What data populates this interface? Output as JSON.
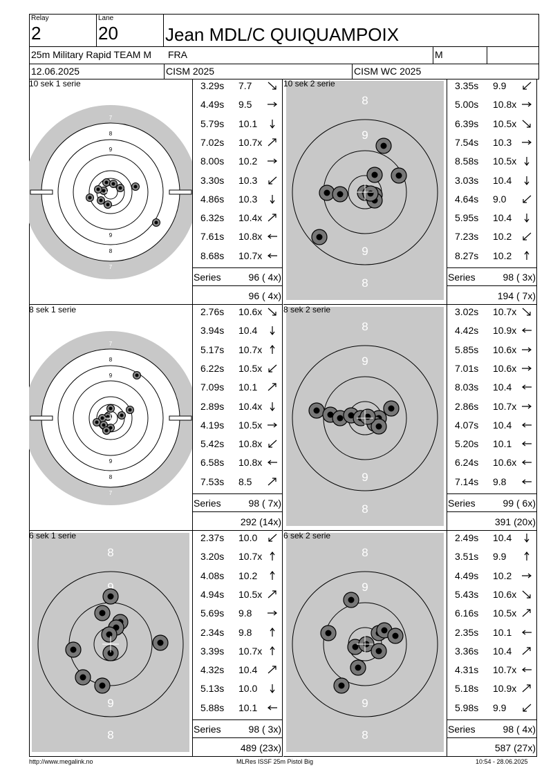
{
  "header": {
    "relay_label": "Relay",
    "relay_value": "2",
    "lane_label": "Lane",
    "lane_value": "20",
    "shooter_name": "Jean MDL/C QUIQUAMPOIX",
    "event": "25m Military Rapid TEAM M",
    "nation": "FRA",
    "gender": "M",
    "date": "12.06.2025",
    "competition": "CISM 2025",
    "championship": "CISM WC 2025"
  },
  "series": [
    {
      "title": "10 sek 1 serie",
      "target_type": "precision",
      "shots": [
        {
          "time": "3.29s",
          "value": "7.7",
          "dir": "se"
        },
        {
          "time": "4.49s",
          "value": "9.5",
          "dir": "e"
        },
        {
          "time": "5.79s",
          "value": "10.1",
          "dir": "s"
        },
        {
          "time": "7.02s",
          "value": "10.7x",
          "dir": "ne"
        },
        {
          "time": "8.00s",
          "value": "10.2",
          "dir": "e"
        },
        {
          "time": "3.30s",
          "value": "10.3",
          "dir": "sw"
        },
        {
          "time": "4.86s",
          "value": "10.3",
          "dir": "s"
        },
        {
          "time": "6.32s",
          "value": "10.4x",
          "dir": "ne"
        },
        {
          "time": "7.61s",
          "value": "10.8x",
          "dir": "w"
        },
        {
          "time": "8.68s",
          "value": "10.7x",
          "dir": "w"
        }
      ],
      "series_label": "Series",
      "series_total": "96 ( 4x)",
      "running_total": "96 ( 4x)",
      "hits": [
        [
          -10,
          -2
        ],
        [
          -18,
          -4
        ],
        [
          -6,
          -14
        ],
        [
          4,
          -12
        ],
        [
          14,
          -6
        ],
        [
          36,
          -8
        ],
        [
          -30,
          8
        ],
        [
          -14,
          12
        ],
        [
          -4,
          18
        ],
        [
          66,
          44
        ]
      ]
    },
    {
      "title": "10 sek 2 serie",
      "target_type": "rapid",
      "shots": [
        {
          "time": "3.35s",
          "value": "9.9",
          "dir": "sw"
        },
        {
          "time": "5.00s",
          "value": "10.8x",
          "dir": "e"
        },
        {
          "time": "6.39s",
          "value": "10.5x",
          "dir": "se"
        },
        {
          "time": "7.54s",
          "value": "10.3",
          "dir": "e"
        },
        {
          "time": "8.58s",
          "value": "10.5x",
          "dir": "s"
        },
        {
          "time": "3.03s",
          "value": "10.4",
          "dir": "s"
        },
        {
          "time": "4.64s",
          "value": "9.0",
          "dir": "sw"
        },
        {
          "time": "5.95s",
          "value": "10.4",
          "dir": "s"
        },
        {
          "time": "7.23s",
          "value": "10.2",
          "dir": "sw"
        },
        {
          "time": "8.27s",
          "value": "10.2",
          "dir": "n"
        }
      ],
      "series_label": "Series",
      "series_total": "98 ( 3x)",
      "running_total": "194 ( 7x)",
      "hits": [
        [
          27,
          -67
        ],
        [
          14,
          -25
        ],
        [
          49,
          -24
        ],
        [
          -55,
          1
        ],
        [
          -36,
          3
        ],
        [
          0,
          1
        ],
        [
          14,
          4
        ],
        [
          14,
          12
        ],
        [
          -66,
          65
        ],
        [
          8,
          2
        ]
      ]
    },
    {
      "title": "8 sek 1 serie",
      "target_type": "precision",
      "shots": [
        {
          "time": "2.76s",
          "value": "10.6x",
          "dir": "se"
        },
        {
          "time": "3.94s",
          "value": "10.4",
          "dir": "s"
        },
        {
          "time": "5.17s",
          "value": "10.7x",
          "dir": "n"
        },
        {
          "time": "6.22s",
          "value": "10.5x",
          "dir": "sw"
        },
        {
          "time": "7.09s",
          "value": "10.1",
          "dir": "ne"
        },
        {
          "time": "2.89s",
          "value": "10.4x",
          "dir": "s"
        },
        {
          "time": "4.19s",
          "value": "10.5x",
          "dir": "e"
        },
        {
          "time": "5.42s",
          "value": "10.8x",
          "dir": "sw"
        },
        {
          "time": "6.58s",
          "value": "10.8x",
          "dir": "w"
        },
        {
          "time": "7.53s",
          "value": "8.5",
          "dir": "ne"
        }
      ],
      "series_label": "Series",
      "series_total": "98 ( 7x)",
      "running_total": "292 (14x)",
      "hits": [
        [
          28,
          -12
        ],
        [
          16,
          -4
        ],
        [
          0,
          -14
        ],
        [
          -4,
          -2
        ],
        [
          -12,
          0
        ],
        [
          -20,
          6
        ],
        [
          -10,
          10
        ],
        [
          0,
          14
        ],
        [
          -6,
          18
        ],
        [
          38,
          -62
        ]
      ]
    },
    {
      "title": "8 sek 2 serie",
      "target_type": "rapid",
      "shots": [
        {
          "time": "3.02s",
          "value": "10.7x",
          "dir": "se"
        },
        {
          "time": "4.42s",
          "value": "10.9x",
          "dir": "w"
        },
        {
          "time": "5.85s",
          "value": "10.6x",
          "dir": "e"
        },
        {
          "time": "7.01s",
          "value": "10.6x",
          "dir": "e"
        },
        {
          "time": "8.03s",
          "value": "10.4",
          "dir": "w"
        },
        {
          "time": "2.86s",
          "value": "10.7x",
          "dir": "e"
        },
        {
          "time": "4.07s",
          "value": "10.4",
          "dir": "w"
        },
        {
          "time": "5.20s",
          "value": "10.1",
          "dir": "w"
        },
        {
          "time": "6.24s",
          "value": "10.6x",
          "dir": "w"
        },
        {
          "time": "7.14s",
          "value": "9.8",
          "dir": "w"
        }
      ],
      "series_label": "Series",
      "series_total": "99 ( 6x)",
      "running_total": "391 (20x)",
      "hits": [
        [
          -70,
          -11
        ],
        [
          -50,
          -5
        ],
        [
          -36,
          0
        ],
        [
          -20,
          -4
        ],
        [
          -6,
          0
        ],
        [
          20,
          0
        ],
        [
          14,
          8
        ],
        [
          20,
          12
        ],
        [
          38,
          -14
        ],
        [
          4,
          -2
        ]
      ]
    },
    {
      "title": "6 sek 1 serie",
      "target_type": "rapid",
      "shots": [
        {
          "time": "2.37s",
          "value": "10.0",
          "dir": "sw"
        },
        {
          "time": "3.20s",
          "value": "10.7x",
          "dir": "n"
        },
        {
          "time": "4.08s",
          "value": "10.2",
          "dir": "n"
        },
        {
          "time": "4.94s",
          "value": "10.5x",
          "dir": "ne"
        },
        {
          "time": "5.69s",
          "value": "9.8",
          "dir": "e"
        },
        {
          "time": "2.34s",
          "value": "9.8",
          "dir": "n"
        },
        {
          "time": "3.39s",
          "value": "10.7x",
          "dir": "n"
        },
        {
          "time": "4.32s",
          "value": "10.4",
          "dir": "ne"
        },
        {
          "time": "5.13s",
          "value": "10.0",
          "dir": "s"
        },
        {
          "time": "5.88s",
          "value": "10.1",
          "dir": "w"
        }
      ],
      "series_label": "Series",
      "series_total": "98 ( 3x)",
      "running_total": "489 (23x)",
      "hits": [
        [
          0,
          -69
        ],
        [
          -12,
          -45
        ],
        [
          14,
          -32
        ],
        [
          8,
          -24
        ],
        [
          -2,
          -14
        ],
        [
          72,
          -2
        ],
        [
          -54,
          8
        ],
        [
          0,
          13
        ],
        [
          -40,
          48
        ],
        [
          -12,
          60
        ]
      ]
    },
    {
      "title": "6 sek 2 serie",
      "target_type": "rapid",
      "shots": [
        {
          "time": "2.49s",
          "value": "10.4",
          "dir": "s"
        },
        {
          "time": "3.51s",
          "value": "9.9",
          "dir": "n"
        },
        {
          "time": "4.49s",
          "value": "10.2",
          "dir": "e"
        },
        {
          "time": "5.43s",
          "value": "10.6x",
          "dir": "se"
        },
        {
          "time": "6.16s",
          "value": "10.5x",
          "dir": "ne"
        },
        {
          "time": "2.35s",
          "value": "10.1",
          "dir": "w"
        },
        {
          "time": "3.36s",
          "value": "10.4",
          "dir": "ne"
        },
        {
          "time": "4.31s",
          "value": "10.7x",
          "dir": "w"
        },
        {
          "time": "5.18s",
          "value": "10.9x",
          "dir": "ne"
        },
        {
          "time": "5.98s",
          "value": "9.9",
          "dir": "sw"
        }
      ],
      "series_label": "Series",
      "series_total": "98 ( 4x)",
      "running_total": "587 (27x)",
      "hits": [
        [
          -20,
          -64
        ],
        [
          -53,
          -16
        ],
        [
          20,
          -16
        ],
        [
          28,
          -20
        ],
        [
          44,
          -12
        ],
        [
          -14,
          4
        ],
        [
          2,
          0
        ],
        [
          20,
          10
        ],
        [
          -10,
          34
        ],
        [
          -34,
          60
        ]
      ]
    }
  ],
  "footer": {
    "left": "http://www.megalink.no",
    "center": "MLRes ISSF 25m Pistol Big",
    "right": "10:54 - 28.06.2025"
  }
}
